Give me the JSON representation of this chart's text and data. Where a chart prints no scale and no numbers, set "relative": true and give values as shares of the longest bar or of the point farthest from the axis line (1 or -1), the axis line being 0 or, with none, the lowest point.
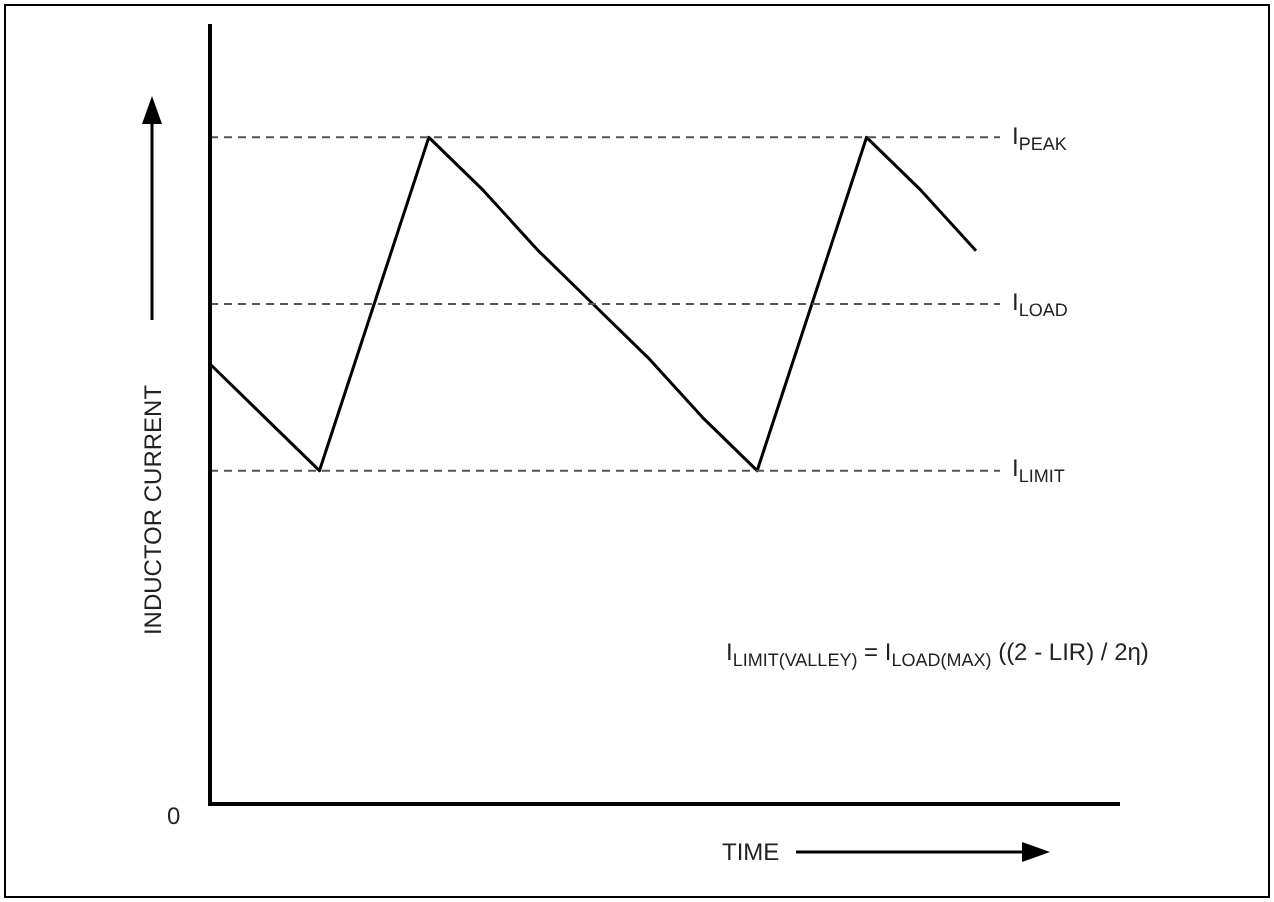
{
  "chart_data": {
    "type": "line",
    "relative": true,
    "xlabel": "TIME",
    "ylabel": "INDUCTOR CURRENT",
    "marker": "none",
    "line_style": "solid",
    "legend": false,
    "categories": [
      null,
      null,
      null,
      null,
      null,
      null,
      null,
      null,
      null,
      null,
      null,
      null,
      null,
      null,
      null
    ],
    "series": [
      {
        "color": "#000000",
        "values": [
          0.66,
          0.58,
          0.5,
          0.75,
          1,
          0.92,
          0.83,
          0.75,
          0.67,
          0.58,
          0.5,
          0.75,
          1,
          0.92,
          0.83
        ]
      }
    ],
    "ref_lines": [
      {
        "axis": "y",
        "value": 1,
        "label": "I$_{PEAK}$",
        "color": "#555555",
        "line_style": "dashed"
      },
      {
        "axis": "y",
        "value": 0.75,
        "label": "I$_{LOAD}$",
        "color": "#555555",
        "line_style": "dashed"
      },
      {
        "axis": "y",
        "value": 0.5,
        "label": "I$_{LIMIT}$",
        "color": "#555555",
        "line_style": "dashed"
      }
    ],
    "annotations": [
      "0",
      "I$_{LIMIT(VALLEY)}$ = I$_{LOAD(MAX)}$ ((2 - LIR) / 2η)"
    ]
  }
}
